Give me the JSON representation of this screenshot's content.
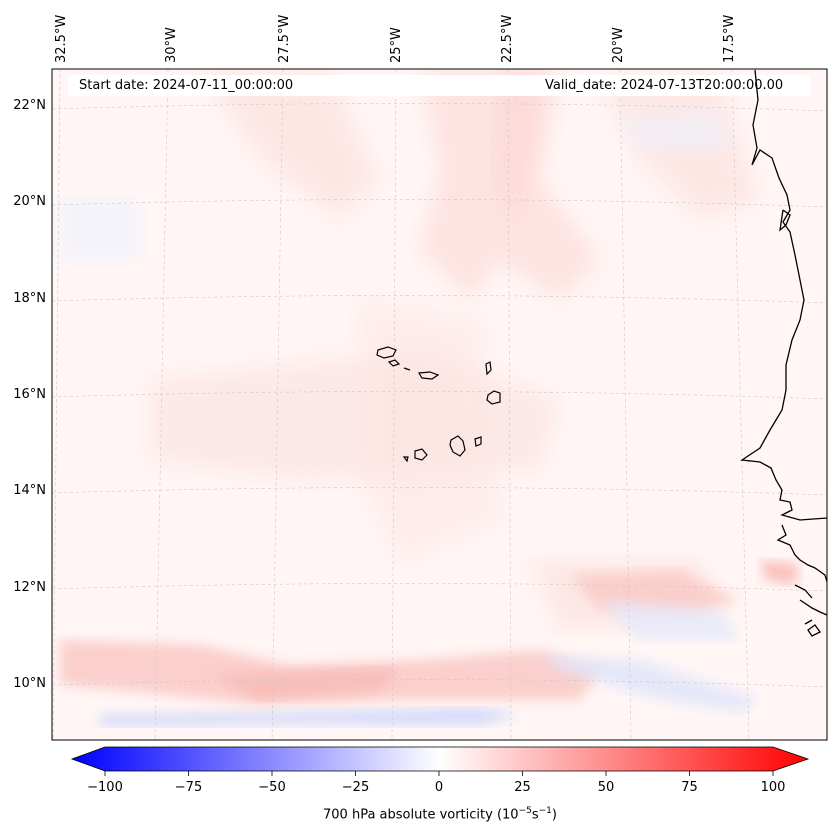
{
  "header": {
    "start_date": "Start date: 2024-07-11_00:00:00",
    "valid_date": "Valid_date: 2024-07-13T20:00:00.00"
  },
  "map": {
    "lon_labels": [
      "32.5°W",
      "30°W",
      "27.5°W",
      "25°W",
      "22.5°W",
      "20°W",
      "17.5°W"
    ],
    "lat_labels": [
      "22°N",
      "20°N",
      "18°N",
      "16°N",
      "14°N",
      "12°N",
      "10°N"
    ],
    "background_color": "#fff5f5",
    "coastline_color": "#000000"
  },
  "colorbar": {
    "ticks": [
      "−100",
      "−75",
      "−50",
      "−25",
      "0",
      "25",
      "50",
      "75",
      "100"
    ],
    "label": "700 hPa absolute vorticity (10",
    "label_sup1": "−5",
    "label_mid": "s",
    "label_sup2": "−1",
    "label_end": ")",
    "min_color": "#0000ff",
    "mid_color": "#ffffff",
    "max_color": "#ff0000"
  }
}
